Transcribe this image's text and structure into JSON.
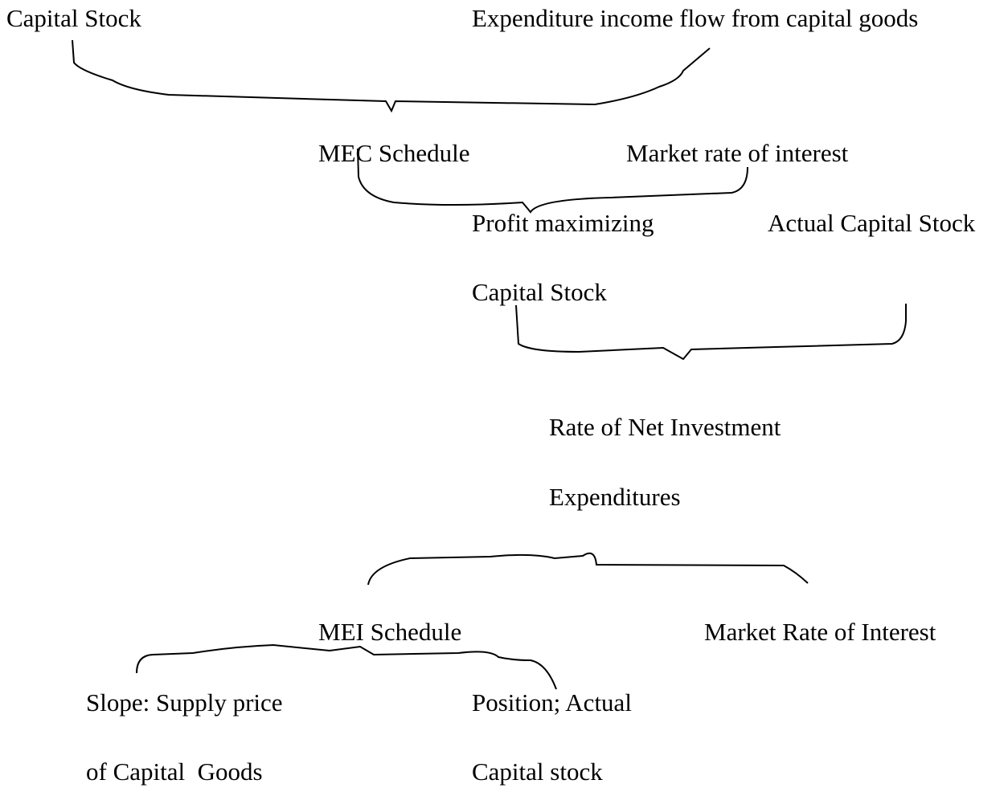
{
  "nodes": [
    {
      "label": "Capital Stock"
    },
    {
      "label": "Expenditure income flow from capital goods"
    },
    {
      "label": "MEC Schedule"
    },
    {
      "label": "Market rate of interest"
    },
    {
      "label": "Profit maximizing"
    },
    {
      "label": "Actual Capital Stock"
    },
    {
      "label": "Capital Stock"
    },
    {
      "label": "Rate of Net Investment"
    },
    {
      "label": "Expenditures"
    },
    {
      "label": "MEI Schedule"
    },
    {
      "label": "Market Rate of Interest"
    },
    {
      "label": "Slope: Supply price"
    },
    {
      "label": "Position; Actual"
    },
    {
      "label": "of Capital  Goods"
    },
    {
      "label": "Capital stock"
    }
  ]
}
